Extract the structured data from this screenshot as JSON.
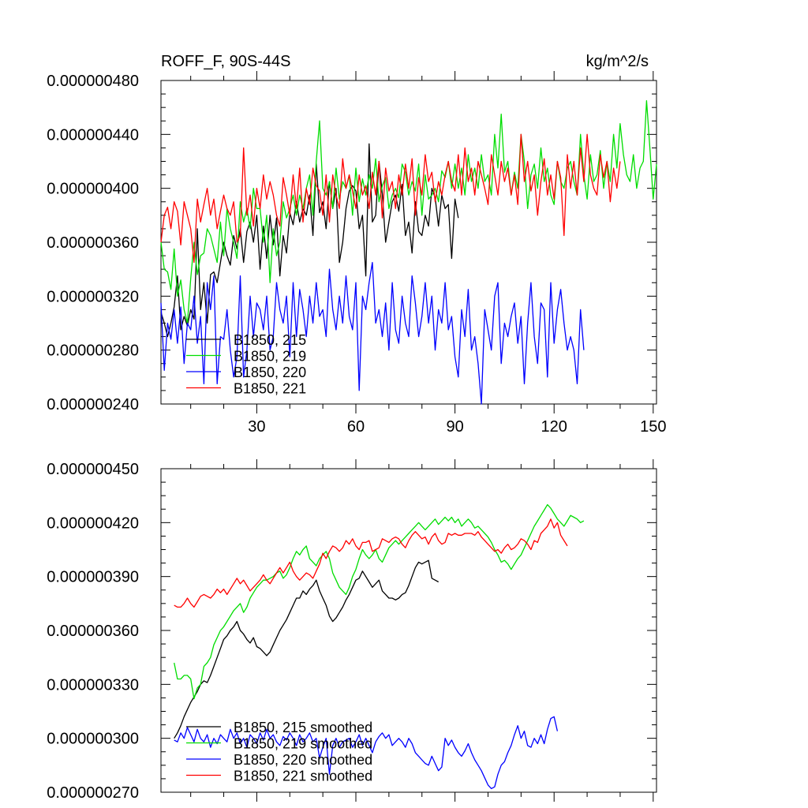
{
  "chart_data": [
    {
      "type": "line",
      "title_left": "ROFF_F, 90S-44S",
      "title_right": "kg/m^2/s",
      "xlabel": "",
      "ylabel": "",
      "xlim": [
        1,
        151
      ],
      "ylim": [
        2.4e-07,
        4.8e-07
      ],
      "x_ticks": [
        30,
        60,
        90,
        120,
        150
      ],
      "x_tick_labels": [
        "30",
        "60",
        "90",
        "120",
        "150"
      ],
      "y_ticks": [
        2.4e-07,
        2.8e-07,
        3.2e-07,
        3.6e-07,
        4e-07,
        4.4e-07,
        4.8e-07
      ],
      "y_tick_labels": [
        "0.000000240",
        "0.000000280",
        "0.000000320",
        "0.000000360",
        "0.000000400",
        "0.000000440",
        "0.000000480"
      ],
      "legend_position": "bottom-left",
      "series": [
        {
          "name": "B1850, 215",
          "color": "#000000",
          "x_start": 1,
          "values_e9": [
            308,
            300,
            290,
            300,
            312,
            335,
            295,
            305,
            298,
            310,
            303,
            370,
            310,
            330,
            300,
            336,
            338,
            330,
            345,
            360,
            350,
            343,
            365,
            355,
            370,
            345,
            368,
            375,
            360,
            380,
            340,
            372,
            348,
            380,
            358,
            378,
            335,
            365,
            352,
            382,
            373,
            390,
            375,
            385,
            380,
            395,
            365,
            418,
            382,
            390,
            370,
            405,
            385,
            400,
            345,
            360,
            385,
            398,
            402,
            398,
            370,
            380,
            335,
            433,
            375,
            380,
            420,
            396,
            360,
            375,
            390,
            395,
            383,
            403,
            365,
            375,
            352,
            390,
            368,
            365,
            380,
            372,
            400,
            393,
            372,
            395,
            385,
            388,
            348,
            392,
            378
          ]
        },
        {
          "name": "B1850, 219",
          "color": "#00dd00",
          "x_start": 1,
          "values_e9": [
            360,
            340,
            338,
            325,
            355,
            320,
            332,
            310,
            300,
            333,
            360,
            336,
            350,
            352,
            370,
            365,
            355,
            345,
            375,
            350,
            385,
            370,
            360,
            348,
            390,
            375,
            385,
            370,
            400,
            385,
            385,
            360,
            380,
            330,
            370,
            350,
            360,
            390,
            378,
            385,
            395,
            380,
            395,
            385,
            400,
            410,
            380,
            420,
            450,
            400,
            395,
            405,
            385,
            415,
            392,
            405,
            400,
            410,
            380,
            415,
            390,
            407,
            395,
            410,
            400,
            422,
            390,
            402,
            408,
            385,
            395,
            400,
            393,
            418,
            412,
            395,
            405,
            398,
            418,
            380,
            410,
            392,
            395,
            400,
            390,
            413,
            408,
            420,
            400,
            418,
            400,
            415,
            395,
            425,
            405,
            415,
            400,
            425,
            405,
            410,
            395,
            440,
            415,
            455,
            412,
            420,
            395,
            412,
            400,
            440,
            420,
            385,
            410,
            418,
            400,
            430,
            405,
            415,
            395,
            388,
            420,
            405,
            400,
            415,
            420,
            405,
            395,
            440,
            410,
            392,
            425,
            405,
            410,
            428,
            400,
            420,
            405,
            440,
            415,
            448,
            425,
            410,
            405,
            425,
            400,
            415,
            420,
            465,
            430,
            392,
            418
          ]
        },
        {
          "name": "B1850, 220",
          "color": "#0000ff",
          "x_start": 1,
          "values_e9": [
            315,
            265,
            300,
            288,
            310,
            285,
            312,
            270,
            300,
            295,
            320,
            285,
            305,
            255,
            330,
            310,
            335,
            255,
            290,
            288,
            310,
            280,
            260,
            275,
            335,
            260,
            280,
            320,
            290,
            315,
            310,
            295,
            320,
            280,
            290,
            330,
            310,
            300,
            320,
            275,
            330,
            290,
            325,
            310,
            290,
            320,
            300,
            330,
            305,
            310,
            290,
            340,
            310,
            295,
            320,
            300,
            335,
            305,
            295,
            330,
            250,
            320,
            310,
            330,
            345,
            300,
            310,
            290,
            315,
            280,
            330,
            295,
            285,
            320,
            300,
            290,
            335,
            315,
            290,
            305,
            330,
            300,
            320,
            280,
            310,
            300,
            330,
            295,
            305,
            275,
            260,
            310,
            290,
            325,
            280,
            290,
            270,
            240,
            310,
            295,
            280,
            320,
            330,
            270,
            300,
            290,
            305,
            315,
            285,
            305,
            255,
            300,
            330,
            290,
            270,
            315,
            310,
            260,
            330,
            285,
            310,
            325,
            300,
            280,
            290,
            280,
            255,
            310,
            280
          ]
        },
        {
          "name": "B1850, 221",
          "color": "#ff0000",
          "x_start": 1,
          "values_e9": [
            360,
            380,
            386,
            370,
            390,
            383,
            358,
            390,
            380,
            370,
            345,
            392,
            375,
            388,
            400,
            380,
            392,
            370,
            383,
            395,
            385,
            380,
            390,
            360,
            365,
            430,
            380,
            395,
            372,
            400,
            385,
            410,
            392,
            405,
            395,
            380,
            372,
            408,
            395,
            380,
            410,
            385,
            415,
            375,
            400,
            388,
            415,
            402,
            398,
            380,
            410,
            375,
            410,
            395,
            385,
            422,
            400,
            410,
            398,
            385,
            410,
            395,
            402,
            385,
            412,
            395,
            420,
            378,
            415,
            398,
            405,
            385,
            410,
            395,
            418,
            400,
            422,
            380,
            408,
            395,
            425,
            405,
            412,
            390,
            405,
            395,
            410,
            420,
            405,
            398,
            425,
            395,
            430,
            405,
            415,
            395,
            420,
            410,
            400,
            388,
            425,
            410,
            395,
            420,
            405,
            415,
            395,
            410,
            388,
            440,
            405,
            420,
            398,
            410,
            380,
            405,
            422,
            395,
            410,
            392,
            420,
            408,
            365,
            425,
            400,
            420,
            395,
            430,
            405,
            440,
            410,
            400,
            395,
            425,
            408,
            420,
            390,
            415,
            400,
            420
          ]
        }
      ]
    },
    {
      "type": "line",
      "title_left": "",
      "title_right": "",
      "xlabel": "",
      "ylabel": "",
      "xlim": [
        1,
        151
      ],
      "ylim": [
        2.7e-07,
        4.5e-07
      ],
      "x_ticks": [
        30,
        60,
        90,
        120,
        150
      ],
      "x_tick_labels": [],
      "y_ticks": [
        2.7e-07,
        3e-07,
        3.3e-07,
        3.6e-07,
        3.9e-07,
        4.2e-07,
        4.5e-07
      ],
      "y_tick_labels": [
        "0.000000270",
        "0.000000300",
        "0.000000330",
        "0.000000360",
        "0.000000390",
        "0.000000420",
        "0.000000450"
      ],
      "legend_position": "bottom-left",
      "series": [
        {
          "name": "B1850, 215 smoothed",
          "color": "#000000",
          "x_start": 5,
          "values_e9": [
            300,
            303,
            307,
            312,
            316,
            320,
            323,
            326,
            330,
            332,
            331,
            335,
            340,
            345,
            350,
            355,
            357,
            360,
            362,
            365,
            360,
            358,
            355,
            353,
            356,
            351,
            350,
            348,
            346,
            348,
            352,
            356,
            360,
            363,
            366,
            370,
            374,
            378,
            378,
            382,
            380,
            383,
            385,
            388,
            382,
            378,
            374,
            368,
            365,
            367,
            370,
            373,
            377,
            380,
            384,
            388,
            389,
            393,
            390,
            387,
            384,
            386,
            388,
            382,
            380,
            378,
            378,
            377,
            378,
            380,
            381,
            385,
            390,
            395,
            398,
            397,
            398,
            399,
            389,
            388,
            387
          ]
        },
        {
          "name": "B1850, 219 smoothed",
          "color": "#00dd00",
          "x_start": 5,
          "values_e9": [
            342,
            333,
            333,
            335,
            335,
            333,
            322,
            328,
            330,
            340,
            342,
            345,
            352,
            356,
            360,
            362,
            365,
            368,
            371,
            373,
            375,
            370,
            373,
            378,
            381,
            384,
            386,
            388,
            388,
            389,
            390,
            392,
            393,
            389,
            391,
            395,
            400,
            404,
            402,
            405,
            407,
            400,
            398,
            396,
            400,
            402,
            404,
            400,
            392,
            388,
            384,
            382,
            380,
            384,
            390,
            394,
            400,
            405,
            402,
            400,
            402,
            405,
            400,
            398,
            402,
            406,
            408,
            410,
            408,
            410,
            412,
            414,
            416,
            418,
            420,
            418,
            416,
            418,
            420,
            422,
            419,
            421,
            423,
            421,
            423,
            420,
            422,
            418,
            420,
            422,
            420,
            417,
            418,
            416,
            414,
            412,
            409,
            405,
            402,
            398,
            399,
            397,
            394,
            397,
            400,
            402,
            406,
            410,
            414,
            418,
            421,
            424,
            427,
            430,
            428,
            425,
            422,
            420,
            418,
            421,
            424,
            423,
            422,
            420,
            421
          ]
        },
        {
          "name": "B1850, 220 smoothed",
          "color": "#0000ff",
          "x_start": 5,
          "values_e9": [
            299,
            298,
            303,
            300,
            306,
            302,
            298,
            305,
            300,
            298,
            302,
            295,
            300,
            297,
            302,
            300,
            298,
            305,
            300,
            303,
            297,
            300,
            295,
            302,
            300,
            297,
            303,
            299,
            305,
            300,
            302,
            298,
            296,
            301,
            299,
            303,
            300,
            296,
            302,
            298,
            300,
            303,
            298,
            300,
            289,
            295,
            300,
            280,
            296,
            300,
            295,
            298,
            299,
            300,
            295,
            298,
            302,
            296,
            300,
            296,
            292,
            298,
            301,
            303,
            300,
            302,
            296,
            298,
            300,
            298,
            295,
            300,
            297,
            292,
            290,
            288,
            286,
            285,
            290,
            286,
            282,
            284,
            300,
            296,
            299,
            295,
            292,
            290,
            293,
            297,
            292,
            288,
            285,
            282,
            278,
            274,
            272,
            273,
            280,
            285,
            287,
            292,
            296,
            302,
            307,
            300,
            304,
            296,
            295,
            300,
            297,
            302,
            297,
            305,
            311,
            312,
            304
          ]
        },
        {
          "name": "B1850, 221 smoothed",
          "color": "#ff0000",
          "x_start": 5,
          "values_e9": [
            374,
            373,
            373,
            375,
            378,
            375,
            373,
            376,
            379,
            380,
            379,
            378,
            380,
            383,
            381,
            383,
            380,
            383,
            386,
            389,
            386,
            388,
            385,
            382,
            384,
            386,
            388,
            391,
            388,
            386,
            389,
            392,
            395,
            392,
            395,
            398,
            393,
            390,
            388,
            390,
            392,
            391,
            389,
            393,
            397,
            403,
            400,
            404,
            407,
            406,
            404,
            406,
            410,
            408,
            411,
            407,
            405,
            409,
            409,
            410,
            404,
            405,
            406,
            411,
            410,
            409,
            411,
            412,
            411,
            408,
            406,
            410,
            413,
            415,
            413,
            411,
            412,
            408,
            412,
            414,
            410,
            408,
            409,
            414,
            413,
            414,
            413,
            413,
            414,
            414,
            414,
            413,
            415,
            412,
            410,
            408,
            406,
            404,
            405,
            403,
            406,
            408,
            405,
            406,
            408,
            411,
            410,
            408,
            405,
            410,
            409,
            414,
            416,
            418,
            422,
            417,
            420,
            413,
            410,
            407
          ]
        }
      ]
    }
  ]
}
